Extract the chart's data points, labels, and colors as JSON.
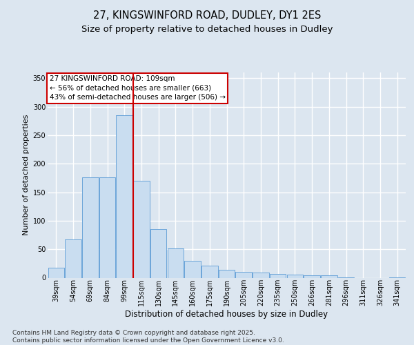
{
  "title_line1": "27, KINGSWINFORD ROAD, DUDLEY, DY1 2ES",
  "title_line2": "Size of property relative to detached houses in Dudley",
  "xlabel": "Distribution of detached houses by size in Dudley",
  "ylabel": "Number of detached properties",
  "categories": [
    "39sqm",
    "54sqm",
    "69sqm",
    "84sqm",
    "99sqm",
    "115sqm",
    "130sqm",
    "145sqm",
    "160sqm",
    "175sqm",
    "190sqm",
    "205sqm",
    "220sqm",
    "235sqm",
    "250sqm",
    "266sqm",
    "281sqm",
    "296sqm",
    "311sqm",
    "326sqm",
    "341sqm"
  ],
  "values": [
    18,
    67,
    176,
    176,
    285,
    170,
    85,
    52,
    30,
    21,
    14,
    10,
    9,
    7,
    5,
    4,
    4,
    1,
    0,
    0,
    1
  ],
  "bar_color": "#c9ddf0",
  "bar_edge_color": "#5b9bd5",
  "bg_color": "#dce6f0",
  "grid_color": "#ffffff",
  "vline_x": 4.5,
  "vline_color": "#cc0000",
  "annotation_text": "27 KINGSWINFORD ROAD: 109sqm\n← 56% of detached houses are smaller (663)\n43% of semi-detached houses are larger (506) →",
  "annotation_box_color": "#cc0000",
  "ylim": [
    0,
    360
  ],
  "yticks": [
    0,
    50,
    100,
    150,
    200,
    250,
    300,
    350
  ],
  "footnote": "Contains HM Land Registry data © Crown copyright and database right 2025.\nContains public sector information licensed under the Open Government Licence v3.0.",
  "title_fontsize": 10.5,
  "subtitle_fontsize": 9.5,
  "annotation_fontsize": 7.5,
  "xlabel_fontsize": 8.5,
  "ylabel_fontsize": 8,
  "tick_fontsize": 7,
  "footnote_fontsize": 6.5
}
